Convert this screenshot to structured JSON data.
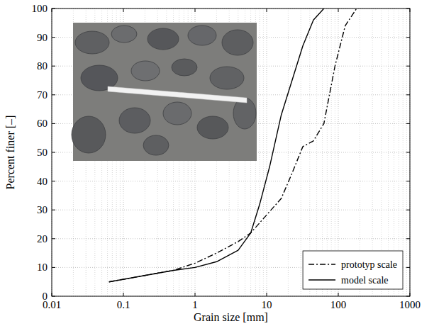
{
  "chart_data": {
    "type": "line",
    "x_label": "Grain size [mm]",
    "y_label": "Percent finer [–]",
    "log": "x",
    "grid": true,
    "legend": "lower right",
    "xlim": [
      0.01,
      1000
    ],
    "xticks": [
      0.01,
      0.1,
      1,
      10,
      100,
      1000
    ],
    "ylim": [
      0,
      100
    ],
    "yticks": [
      0,
      10,
      20,
      30,
      40,
      50,
      60,
      70,
      80,
      90,
      100
    ],
    "series": [
      {
        "name": "prototyp scale",
        "color": "#000000",
        "line_style": "dashdot",
        "x": [
          0.063,
          0.5,
          1,
          2,
          4,
          6,
          16,
          22,
          32,
          45,
          63,
          90,
          125,
          180
        ],
        "values": [
          5,
          9,
          11.5,
          15,
          19,
          22,
          34,
          42,
          52,
          54,
          60,
          80,
          94,
          100
        ]
      },
      {
        "name": "model scale",
        "color": "#000000",
        "line_style": "solid",
        "x": [
          0.063,
          0.5,
          1,
          2,
          4,
          6,
          8,
          11,
          16,
          32,
          45,
          63
        ],
        "values": [
          5,
          9,
          10,
          12,
          16,
          22,
          32,
          45,
          63,
          87,
          96,
          100
        ]
      }
    ]
  }
}
